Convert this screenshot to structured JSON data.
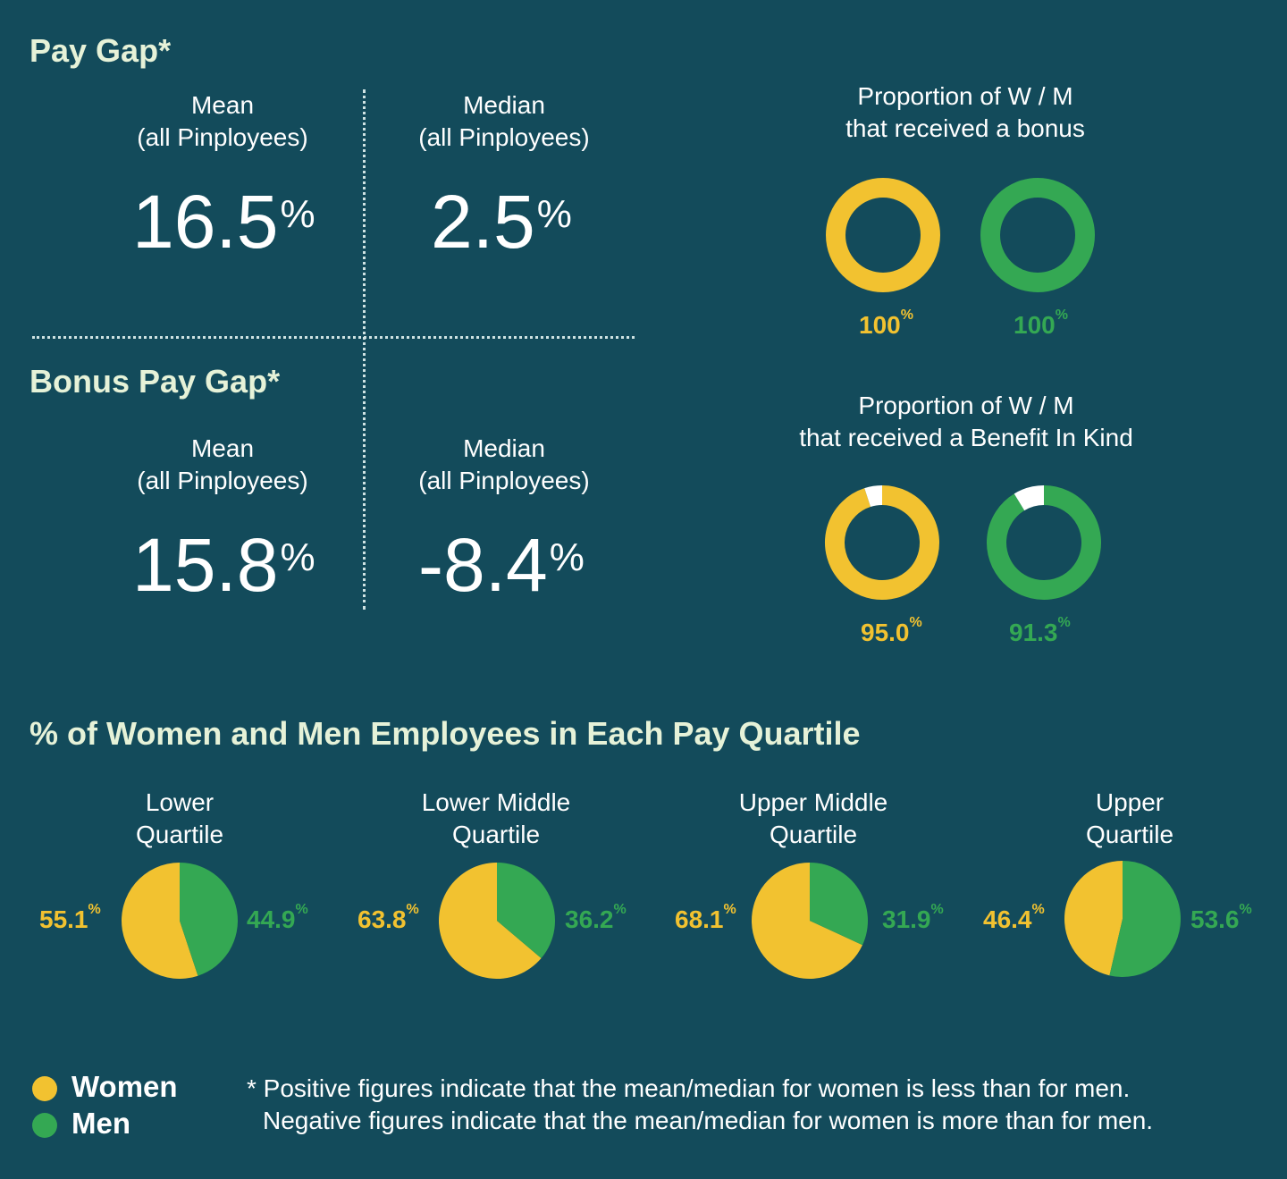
{
  "colors": {
    "background": "#134b5b",
    "women": "#f2c230",
    "men": "#34a853",
    "gap": "#ffffff",
    "title": "#e6f2d8"
  },
  "pay_gap": {
    "title": "Pay Gap*",
    "mean_label_1": "Mean",
    "mean_label_2": "(all Pinployees)",
    "mean_value": "16.5",
    "median_label_1": "Median",
    "median_label_2": "(all Pinployees)",
    "median_value": "2.5",
    "unit": "%"
  },
  "bonus_gap": {
    "title": "Bonus Pay Gap*",
    "mean_label_1": "Mean",
    "mean_label_2": "(all Pinployees)",
    "mean_value": "15.8",
    "median_label_1": "Median",
    "median_label_2": "(all Pinployees)",
    "median_value": "-8.4",
    "unit": "%"
  },
  "bonus_proportion": {
    "title_1": "Proportion of W / M",
    "title_2": "that received a bonus",
    "women_label": "100",
    "men_label": "100",
    "unit": "%"
  },
  "bik_proportion": {
    "title_1": "Proportion of W / M",
    "title_2": "that received a Benefit In Kind",
    "women_label": "95.0",
    "men_label": "91.3",
    "unit": "%"
  },
  "quartiles": {
    "title": "% of Women and Men Employees in Each Pay Quartile",
    "items": [
      {
        "name_1": "Lower",
        "name_2": "Quartile",
        "women": "55.1",
        "men": "44.9"
      },
      {
        "name_1": "Lower Middle",
        "name_2": "Quartile",
        "women": "63.8",
        "men": "36.2"
      },
      {
        "name_1": "Upper Middle",
        "name_2": "Quartile",
        "women": "68.1",
        "men": "31.9"
      },
      {
        "name_1": "Upper",
        "name_2": "Quartile",
        "women": "46.4",
        "men": "53.6"
      }
    ],
    "unit": "%"
  },
  "legend": {
    "women": "Women",
    "men": "Men"
  },
  "footnote": {
    "line1": "* Positive figures indicate that the mean/median for women is less than for men.",
    "line2": "Negative figures indicate that the mean/median for women is more than for men."
  },
  "chart_data": [
    {
      "type": "pie",
      "title": "Proportion of W / M that received a bonus",
      "categories": [
        "Women",
        "Men"
      ],
      "values": [
        100,
        100
      ]
    },
    {
      "type": "pie",
      "title": "Proportion of W / M that received a Benefit In Kind",
      "categories": [
        "Women",
        "Men"
      ],
      "values": [
        95.0,
        91.3
      ]
    },
    {
      "type": "pie",
      "title": "Lower Quartile",
      "categories": [
        "Women",
        "Men"
      ],
      "values": [
        55.1,
        44.9
      ]
    },
    {
      "type": "pie",
      "title": "Lower Middle Quartile",
      "categories": [
        "Women",
        "Men"
      ],
      "values": [
        63.8,
        36.2
      ]
    },
    {
      "type": "pie",
      "title": "Upper Middle Quartile",
      "categories": [
        "Women",
        "Men"
      ],
      "values": [
        68.1,
        31.9
      ]
    },
    {
      "type": "pie",
      "title": "Upper Quartile",
      "categories": [
        "Women",
        "Men"
      ],
      "values": [
        46.4,
        53.6
      ]
    }
  ]
}
